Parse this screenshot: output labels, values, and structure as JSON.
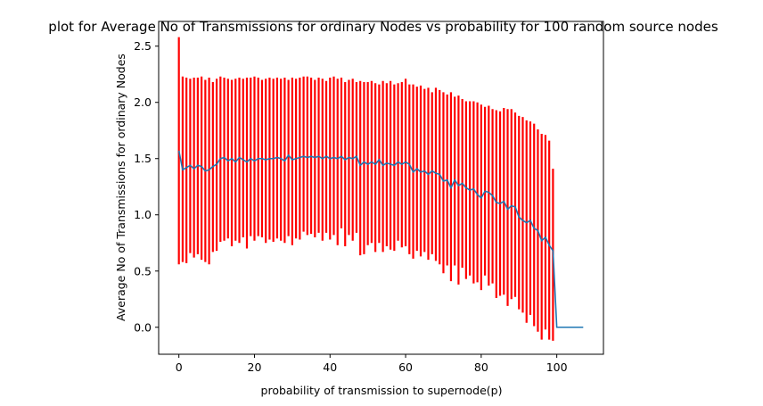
{
  "chart_data": {
    "type": "line",
    "title": "plot for Average No of Transmissions for ordinary Nodes vs probability for 100 random source nodes",
    "xlabel": "probability of transmission to supernode(p)",
    "ylabel": "Average No of Transmissions for ordinary Nodes",
    "xlim": [
      -5.35,
      112.35
    ],
    "ylim": [
      -0.24,
      2.72
    ],
    "xticks": [
      0,
      20,
      40,
      60,
      80,
      100
    ],
    "yticks": [
      0.0,
      0.5,
      1.0,
      1.5,
      2.0,
      2.5
    ],
    "xtick_labels": [
      "0",
      "20",
      "40",
      "60",
      "80",
      "100"
    ],
    "ytick_labels": [
      "0.0",
      "0.5",
      "1.0",
      "1.5",
      "2.0",
      "2.5"
    ],
    "grid": false,
    "colors": {
      "mean_line": "#1f77b4",
      "error_bars": "#ff0000"
    },
    "series": [
      {
        "kind": "errorbar",
        "x": [
          0,
          1,
          2,
          3,
          4,
          5,
          6,
          7,
          8,
          9,
          10,
          11,
          12,
          13,
          14,
          15,
          16,
          17,
          18,
          19,
          20,
          21,
          22,
          23,
          24,
          25,
          26,
          27,
          28,
          29,
          30,
          31,
          32,
          33,
          34,
          35,
          36,
          37,
          38,
          39,
          40,
          41,
          42,
          43,
          44,
          45,
          46,
          47,
          48,
          49,
          50,
          51,
          52,
          53,
          54,
          55,
          56,
          57,
          58,
          59,
          60,
          61,
          62,
          63,
          64,
          65,
          66,
          67,
          68,
          69,
          70,
          71,
          72,
          73,
          74,
          75,
          76,
          77,
          78,
          79,
          80,
          81,
          82,
          83,
          84,
          85,
          86,
          87,
          88,
          89,
          90,
          91,
          92,
          93,
          94,
          95,
          96,
          97,
          98,
          99
        ],
        "y": [
          1.57,
          1.4,
          1.42,
          1.44,
          1.41,
          1.44,
          1.43,
          1.39,
          1.4,
          1.43,
          1.45,
          1.5,
          1.51,
          1.48,
          1.5,
          1.47,
          1.51,
          1.49,
          1.47,
          1.5,
          1.48,
          1.5,
          1.5,
          1.49,
          1.5,
          1.5,
          1.51,
          1.5,
          1.48,
          1.53,
          1.49,
          1.5,
          1.51,
          1.52,
          1.51,
          1.52,
          1.51,
          1.52,
          1.5,
          1.52,
          1.5,
          1.51,
          1.5,
          1.52,
          1.49,
          1.51,
          1.5,
          1.52,
          1.44,
          1.47,
          1.45,
          1.47,
          1.45,
          1.49,
          1.44,
          1.46,
          1.45,
          1.44,
          1.47,
          1.45,
          1.47,
          1.45,
          1.38,
          1.41,
          1.38,
          1.39,
          1.36,
          1.39,
          1.37,
          1.36,
          1.3,
          1.31,
          1.24,
          1.31,
          1.26,
          1.28,
          1.24,
          1.22,
          1.23,
          1.18,
          1.15,
          1.21,
          1.2,
          1.17,
          1.11,
          1.1,
          1.12,
          1.05,
          1.08,
          1.07,
          0.98,
          0.95,
          0.93,
          0.95,
          0.88,
          0.86,
          0.77,
          0.8,
          0.73,
          0.68
        ],
        "yerr_low": [
          0.56,
          0.58,
          0.57,
          0.66,
          0.62,
          0.65,
          0.6,
          0.58,
          0.56,
          0.67,
          0.68,
          0.76,
          0.77,
          0.79,
          0.72,
          0.77,
          0.75,
          0.8,
          0.7,
          0.81,
          0.77,
          0.81,
          0.8,
          0.75,
          0.78,
          0.76,
          0.79,
          0.77,
          0.75,
          0.81,
          0.73,
          0.79,
          0.78,
          0.85,
          0.82,
          0.83,
          0.8,
          0.84,
          0.77,
          0.84,
          0.78,
          0.82,
          0.73,
          0.88,
          0.72,
          0.82,
          0.77,
          0.84,
          0.64,
          0.65,
          0.73,
          0.75,
          0.67,
          0.75,
          0.67,
          0.72,
          0.69,
          0.68,
          0.77,
          0.71,
          0.72,
          0.65,
          0.61,
          0.68,
          0.63,
          0.67,
          0.6,
          0.65,
          0.59,
          0.56,
          0.48,
          0.55,
          0.41,
          0.55,
          0.38,
          0.53,
          0.43,
          0.46,
          0.39,
          0.4,
          0.33,
          0.46,
          0.37,
          0.39,
          0.26,
          0.28,
          0.29,
          0.19,
          0.25,
          0.27,
          0.16,
          0.13,
          0.04,
          0.11,
          0.01,
          -0.04,
          -0.11,
          -0.02,
          -0.11,
          -0.12
        ],
        "yerr_high": [
          2.58,
          2.23,
          2.22,
          2.21,
          2.22,
          2.22,
          2.23,
          2.2,
          2.22,
          2.18,
          2.21,
          2.23,
          2.22,
          2.21,
          2.2,
          2.21,
          2.22,
          2.21,
          2.22,
          2.22,
          2.23,
          2.22,
          2.2,
          2.21,
          2.22,
          2.21,
          2.22,
          2.21,
          2.22,
          2.2,
          2.22,
          2.21,
          2.22,
          2.23,
          2.23,
          2.22,
          2.2,
          2.22,
          2.21,
          2.19,
          2.22,
          2.23,
          2.21,
          2.22,
          2.18,
          2.2,
          2.21,
          2.18,
          2.19,
          2.18,
          2.18,
          2.19,
          2.17,
          2.16,
          2.19,
          2.17,
          2.19,
          2.16,
          2.17,
          2.18,
          2.21,
          2.16,
          2.16,
          2.14,
          2.15,
          2.12,
          2.13,
          2.09,
          2.13,
          2.11,
          2.09,
          2.07,
          2.09,
          2.05,
          2.06,
          2.03,
          2.01,
          2.01,
          2.01,
          2.0,
          1.98,
          1.96,
          1.97,
          1.94,
          1.93,
          1.92,
          1.95,
          1.94,
          1.94,
          1.91,
          1.88,
          1.87,
          1.84,
          1.83,
          1.81,
          1.76,
          1.72,
          1.71,
          1.66,
          1.41
        ]
      },
      {
        "kind": "line",
        "x": [
          0,
          1,
          2,
          3,
          4,
          5,
          6,
          7,
          8,
          9,
          10,
          11,
          12,
          13,
          14,
          15,
          16,
          17,
          18,
          19,
          20,
          21,
          22,
          23,
          24,
          25,
          26,
          27,
          28,
          29,
          30,
          31,
          32,
          33,
          34,
          35,
          36,
          37,
          38,
          39,
          40,
          41,
          42,
          43,
          44,
          45,
          46,
          47,
          48,
          49,
          50,
          51,
          52,
          53,
          54,
          55,
          56,
          57,
          58,
          59,
          60,
          61,
          62,
          63,
          64,
          65,
          66,
          67,
          68,
          69,
          70,
          71,
          72,
          73,
          74,
          75,
          76,
          77,
          78,
          79,
          80,
          81,
          82,
          83,
          84,
          85,
          86,
          87,
          88,
          89,
          90,
          91,
          92,
          93,
          94,
          95,
          96,
          97,
          98,
          99,
          100,
          101,
          102,
          103,
          104,
          105,
          106,
          107
        ],
        "y": [
          1.57,
          1.4,
          1.42,
          1.44,
          1.41,
          1.44,
          1.43,
          1.39,
          1.4,
          1.43,
          1.45,
          1.5,
          1.51,
          1.48,
          1.5,
          1.47,
          1.51,
          1.49,
          1.47,
          1.5,
          1.48,
          1.5,
          1.5,
          1.49,
          1.5,
          1.5,
          1.51,
          1.5,
          1.48,
          1.53,
          1.49,
          1.5,
          1.51,
          1.52,
          1.51,
          1.52,
          1.51,
          1.52,
          1.5,
          1.52,
          1.5,
          1.51,
          1.5,
          1.52,
          1.49,
          1.51,
          1.5,
          1.52,
          1.44,
          1.47,
          1.45,
          1.47,
          1.45,
          1.49,
          1.44,
          1.46,
          1.45,
          1.44,
          1.47,
          1.45,
          1.47,
          1.45,
          1.38,
          1.41,
          1.38,
          1.39,
          1.36,
          1.39,
          1.37,
          1.36,
          1.3,
          1.31,
          1.24,
          1.31,
          1.26,
          1.28,
          1.24,
          1.22,
          1.23,
          1.18,
          1.15,
          1.21,
          1.2,
          1.17,
          1.11,
          1.1,
          1.12,
          1.05,
          1.08,
          1.07,
          0.98,
          0.95,
          0.93,
          0.95,
          0.88,
          0.86,
          0.77,
          0.8,
          0.73,
          0.68,
          0.0,
          0.0,
          0.0,
          0.0,
          0.0,
          0.0,
          0.0,
          0.0
        ]
      }
    ]
  }
}
